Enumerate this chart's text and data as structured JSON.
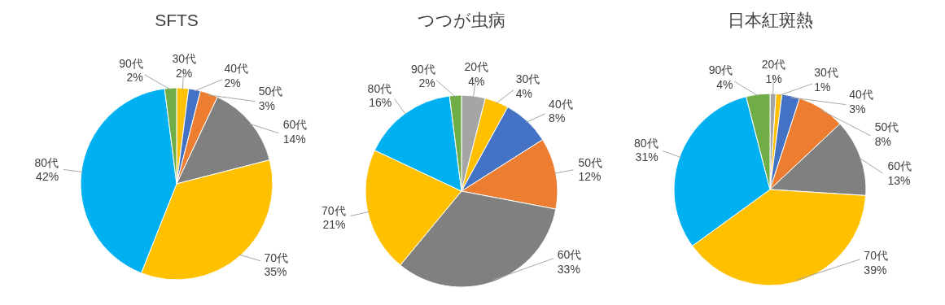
{
  "chart_data": [
    {
      "type": "pie",
      "title": "SFTS",
      "categories": [
        "30代",
        "40代",
        "50代",
        "60代",
        "70代",
        "80代",
        "90代"
      ],
      "values": [
        2,
        2,
        3,
        14,
        35,
        42,
        2
      ],
      "colors": [
        "#ffc000",
        "#4472c4",
        "#ed7d31",
        "#808080",
        "#ffc000",
        "#00b0f0",
        "#70ad47"
      ],
      "value_labels": [
        "2%",
        "2%",
        "3%",
        "14%",
        "35%",
        "42%",
        "2%"
      ],
      "data_labels": true
    },
    {
      "type": "pie",
      "title": "つつが虫病",
      "categories": [
        "20代",
        "30代",
        "40代",
        "50代",
        "60代",
        "70代",
        "80代",
        "90代"
      ],
      "values": [
        4,
        4,
        8,
        12,
        33,
        21,
        16,
        2
      ],
      "colors": [
        "#a5a5a5",
        "#ffc000",
        "#4472c4",
        "#ed7d31",
        "#808080",
        "#ffc000",
        "#00b0f0",
        "#70ad47"
      ],
      "value_labels": [
        "4%",
        "4%",
        "8%",
        "12%",
        "33%",
        "21%",
        "16%",
        "2%"
      ],
      "data_labels": true
    },
    {
      "type": "pie",
      "title": "日本紅斑熱",
      "categories": [
        "20代",
        "30代",
        "40代",
        "50代",
        "60代",
        "70代",
        "80代",
        "90代"
      ],
      "values": [
        1,
        1,
        3,
        8,
        13,
        39,
        31,
        4
      ],
      "colors": [
        "#a5a5a5",
        "#ffc000",
        "#4472c4",
        "#ed7d31",
        "#808080",
        "#ffc000",
        "#00b0f0",
        "#70ad47"
      ],
      "value_labels": [
        "1%",
        "1%",
        "3%",
        "8%",
        "13%",
        "39%",
        "31%",
        "4%"
      ],
      "data_labels": true
    }
  ]
}
